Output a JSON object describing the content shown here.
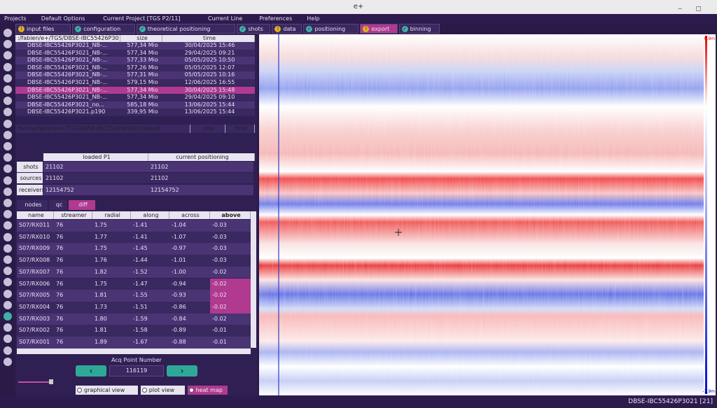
{
  "window": {
    "title": "e+"
  },
  "menu": [
    "Projects",
    "Default Options",
    "Current Project [TGS P2/11]",
    "Current Line",
    "Preferences",
    "Help"
  ],
  "tabs": [
    {
      "label": "input files",
      "status": "warn"
    },
    {
      "label": "configuration",
      "status": "ok"
    },
    {
      "label": "theoretical positioning",
      "status": "ok"
    },
    {
      "label": "shots",
      "status": "ok"
    },
    {
      "label": "data",
      "status": "warn"
    },
    {
      "label": "positioning",
      "status": "ok"
    },
    {
      "label": "export",
      "status": "warn"
    },
    {
      "label": "binning",
      "status": "ok"
    }
  ],
  "files": {
    "headers": [
      ":/fabien/e+/TGS/DBSE-IBC55426P30",
      "size",
      "time"
    ],
    "rows": [
      [
        "DBSE-IBC55426P3021_NB-...",
        "577,34 Mio",
        "30/04/2025 15:46"
      ],
      [
        "DBSE-IBC55426P3021_NB-...",
        "577,34 Mio",
        "29/04/2025 09:21"
      ],
      [
        "DBSE-IBC55426P3021_NB-...",
        "577,33 Mio",
        "05/05/2025 10:50"
      ],
      [
        "DBSE-IBC55426P3021_NB-...",
        "577,26 Mio",
        "05/05/2025 12:07"
      ],
      [
        "DBSE-IBC55426P3021_NB-...",
        "577,31 Mio",
        "05/05/2025 10:16"
      ],
      [
        "DBSE-IBC55426P3021_NB-...",
        "579,15 Mio",
        "12/06/2025 16:55"
      ],
      [
        "DBSE-IBC55426P3021_NB-...",
        "577,34 Mio",
        "30/04/2025 15:48"
      ],
      [
        "DBSE-IBC55426P3021_NB-...",
        "577,34 Mio",
        "29/04/2025 09:10"
      ],
      [
        "DBSE-IBC55426P3021_no...",
        "585,18 Mio",
        "13/06/2025 15:44"
      ],
      [
        "DBSE-IBC55426P3021.p190",
        "339,95 Mio",
        "13/06/2025 15:44"
      ]
    ]
  },
  "report": {
    "headers": [
      "/home/fabien/e+/TGS/DBSE-IBC55426P3021/report",
      "size",
      "time"
    ]
  },
  "stats": {
    "headers": [
      "loaded P1",
      "current positioning"
    ],
    "rows": [
      [
        "shots",
        "21102",
        "21102"
      ],
      [
        "sources",
        "21102",
        "21102"
      ],
      [
        "receivers",
        "12154752",
        "12154752"
      ]
    ]
  },
  "subtabs": [
    "nodes",
    "qc",
    "diff"
  ],
  "diff": {
    "headers": [
      "name",
      "streamer",
      "radial",
      "along",
      "across",
      "above"
    ],
    "rows": [
      [
        "S07/RX011",
        "76",
        "1.75",
        "-1.41",
        "-1.04",
        "-0.03"
      ],
      [
        "S07/RX010",
        "76",
        "1.77",
        "-1.41",
        "-1.07",
        "-0.03"
      ],
      [
        "S07/RX009",
        "76",
        "1.75",
        "-1.45",
        "-0.97",
        "-0.03"
      ],
      [
        "S07/RX008",
        "76",
        "1.76",
        "-1.44",
        "-1.01",
        "-0.03"
      ],
      [
        "S07/RX007",
        "76",
        "1.82",
        "-1.52",
        "-1.00",
        "-0.02"
      ],
      [
        "S07/RX006",
        "76",
        "1.75",
        "-1.47",
        "-0.94",
        "-0.02"
      ],
      [
        "S07/RX005",
        "76",
        "1.81",
        "-1.55",
        "-0.93",
        "-0.02"
      ],
      [
        "S07/RX004",
        "76",
        "1.73",
        "-1.51",
        "-0.86",
        "-0.02"
      ],
      [
        "S07/RX003",
        "76",
        "1.80",
        "-1.59",
        "-0.84",
        "-0.02"
      ],
      [
        "S07/RX002",
        "76",
        "1.81",
        "-1.58",
        "-0.89",
        "-0.01"
      ],
      [
        "S07/RX001",
        "76",
        "1.89",
        "-1.67",
        "-0.88",
        "-0.01"
      ]
    ]
  },
  "acq": {
    "label": "Acq Point Number",
    "value": "116119"
  },
  "views": [
    "graphical view",
    "plot view",
    "heat map"
  ],
  "colorbar": {
    "max": "0.9m",
    "min": "-3.9m"
  },
  "status": "DBSE-IBC55426P3021 [21]"
}
